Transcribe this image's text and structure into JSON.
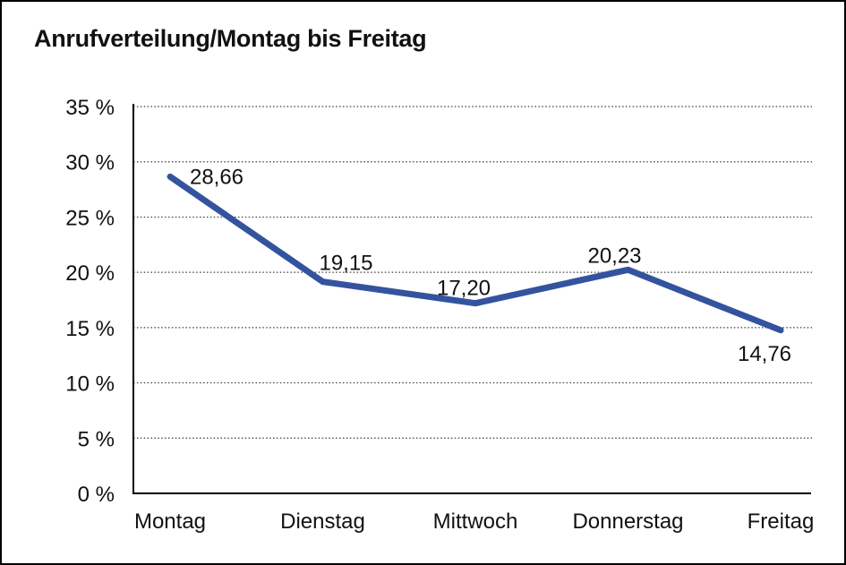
{
  "chart_data": {
    "type": "line",
    "title": "Anrufverteilung/Montag bis Freitag",
    "categories": [
      "Montag",
      "Dienstag",
      "Mittwoch",
      "Donnerstag",
      "Freitag"
    ],
    "values": [
      28.66,
      19.15,
      17.2,
      20.23,
      14.76
    ],
    "data_labels": [
      "28,66",
      "19,15",
      "17,20",
      "20,23",
      "14,76"
    ],
    "series_name": "Anrufverteilung",
    "xlabel": "",
    "ylabel": "",
    "ylim": [
      0,
      35
    ],
    "y_tick_step": 5,
    "y_ticks": [
      {
        "value": 35,
        "label": "35 %"
      },
      {
        "value": 30,
        "label": "30 %"
      },
      {
        "value": 25,
        "label": "25 %"
      },
      {
        "value": 20,
        "label": "20 %"
      },
      {
        "value": 15,
        "label": "15 %"
      },
      {
        "value": 10,
        "label": "10 %"
      },
      {
        "value": 5,
        "label": "5 %"
      },
      {
        "value": 0,
        "label": "0 %"
      }
    ],
    "grid": "horizontal-dotted",
    "legend": "none",
    "colors": {
      "line": "#34539F",
      "grid": "#3a3a3a",
      "axis": "#000000",
      "text": "#111111",
      "background": "#FFFFFF",
      "border": "#000000"
    }
  }
}
